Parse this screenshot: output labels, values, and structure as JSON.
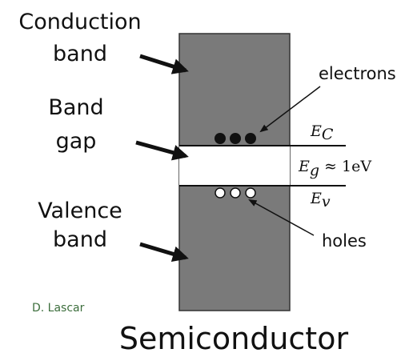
{
  "diagram": {
    "left_labels": {
      "conduction": [
        "Conduction",
        "band"
      ],
      "gap": [
        "Band",
        "gap"
      ],
      "valence": [
        "Valence",
        "band"
      ]
    },
    "electrons": "electrons",
    "holes": "holes",
    "ec": {
      "symbol": "E",
      "subscript": "C"
    },
    "eg": {
      "symbol": "E",
      "subscript": "g",
      "rest": "≈ 1eV"
    },
    "ev": {
      "symbol": "E",
      "subscript": "v"
    },
    "credit": "D. Lascar",
    "title": "Semiconductor"
  }
}
